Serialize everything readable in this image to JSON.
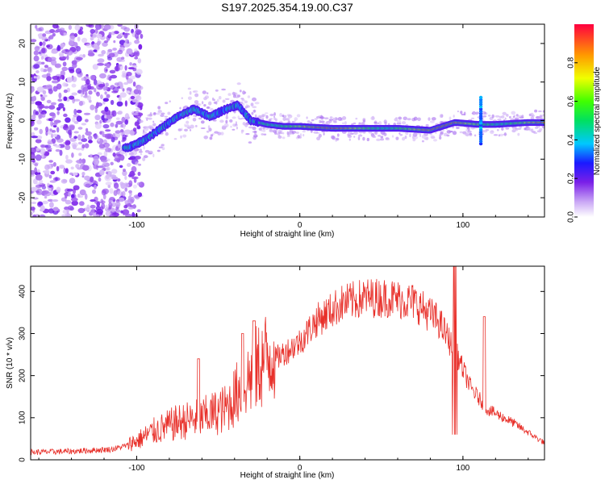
{
  "title": "S197.2025.354.19.00.C37",
  "chart_data": [
    {
      "type": "heatmap",
      "xlabel": "Height of straight line (km)",
      "ylabel": "Frequency (Hz)",
      "xlim": [
        -165,
        150
      ],
      "ylim": [
        -25,
        25
      ],
      "xticks": [
        -100,
        0,
        100
      ],
      "yticks": [
        -20,
        -10,
        0,
        10,
        20
      ],
      "colorbar": {
        "label": "Normalized spectral amplitude",
        "range": [
          0.0,
          1.0
        ],
        "ticks": [
          0.0,
          0.2,
          0.4,
          0.6,
          0.8
        ]
      },
      "ridge": [
        {
          "x": -105,
          "f": -7
        },
        {
          "x": -95,
          "f": -5
        },
        {
          "x": -85,
          "f": -2
        },
        {
          "x": -75,
          "f": 1
        },
        {
          "x": -65,
          "f": 3
        },
        {
          "x": -55,
          "f": 1
        },
        {
          "x": -45,
          "f": 3
        },
        {
          "x": -38,
          "f": 4
        },
        {
          "x": -30,
          "f": 0
        },
        {
          "x": -20,
          "f": -1
        },
        {
          "x": -10,
          "f": -1.5
        },
        {
          "x": 0,
          "f": -1.5
        },
        {
          "x": 20,
          "f": -2
        },
        {
          "x": 40,
          "f": -2
        },
        {
          "x": 60,
          "f": -2
        },
        {
          "x": 80,
          "f": -2.5
        },
        {
          "x": 95,
          "f": -0.5
        },
        {
          "x": 110,
          "f": -1
        },
        {
          "x": 120,
          "f": -1
        },
        {
          "x": 140,
          "f": -0.5
        },
        {
          "x": 150,
          "f": -0.5
        }
      ]
    },
    {
      "type": "line",
      "xlabel": "Height of straight line (km)",
      "ylabel": "SNR (10 * v/v)",
      "xlim": [
        -165,
        150
      ],
      "ylim": [
        0,
        460
      ],
      "xticks": [
        -100,
        0,
        100
      ],
      "yticks": [
        0,
        100,
        200,
        300,
        400
      ],
      "color": "#e8302a",
      "envelope": [
        {
          "x": -165,
          "y": 18
        },
        {
          "x": -140,
          "y": 20
        },
        {
          "x": -115,
          "y": 25
        },
        {
          "x": -100,
          "y": 40
        },
        {
          "x": -90,
          "y": 60
        },
        {
          "x": -75,
          "y": 80
        },
        {
          "x": -60,
          "y": 90
        },
        {
          "x": -45,
          "y": 110
        },
        {
          "x": -35,
          "y": 160
        },
        {
          "x": -25,
          "y": 200
        },
        {
          "x": -15,
          "y": 240
        },
        {
          "x": 0,
          "y": 280
        },
        {
          "x": 10,
          "y": 330
        },
        {
          "x": 25,
          "y": 370
        },
        {
          "x": 40,
          "y": 385
        },
        {
          "x": 55,
          "y": 385
        },
        {
          "x": 70,
          "y": 375
        },
        {
          "x": 85,
          "y": 330
        },
        {
          "x": 95,
          "y": 260
        },
        {
          "x": 105,
          "y": 170
        },
        {
          "x": 115,
          "y": 120
        },
        {
          "x": 130,
          "y": 90
        },
        {
          "x": 150,
          "y": 40
        }
      ],
      "peaks": [
        {
          "x": -62,
          "y": 240
        },
        {
          "x": -35,
          "y": 300
        },
        {
          "x": -28,
          "y": 330
        },
        {
          "x": 95,
          "y": 460
        },
        {
          "x": 113,
          "y": 340
        }
      ]
    }
  ]
}
